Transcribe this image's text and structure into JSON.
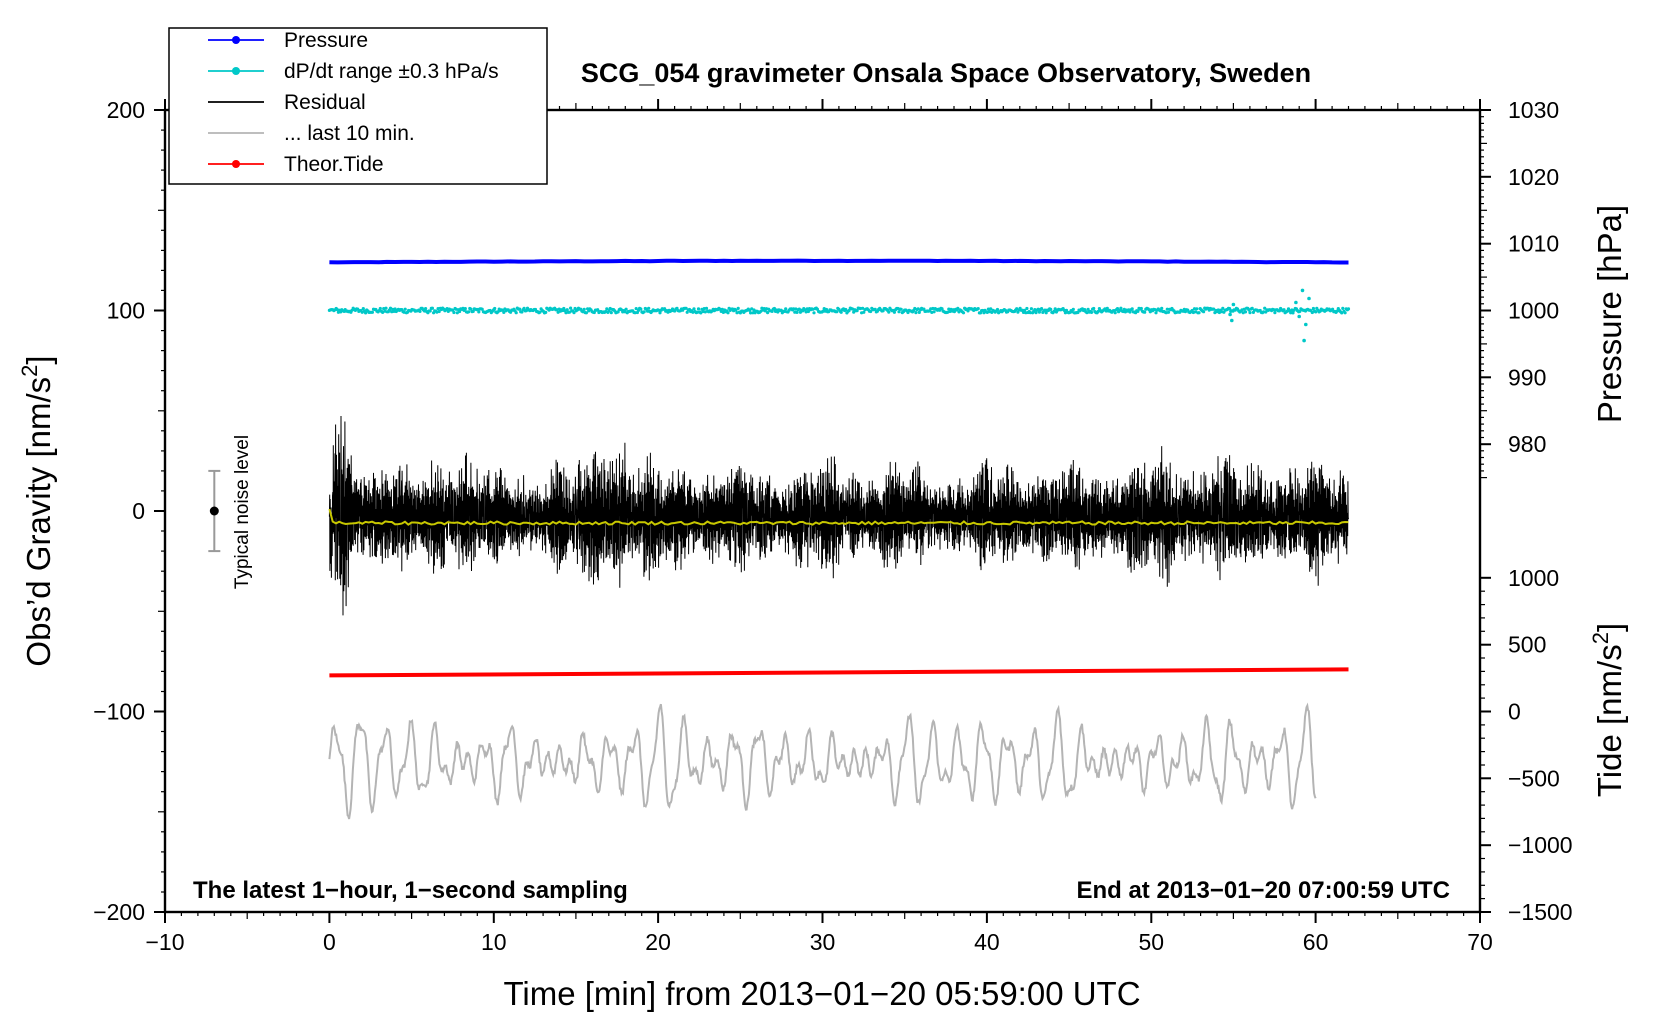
{
  "chart_data": {
    "type": "line",
    "title": "SCG_054 gravimeter Onsala Space Observatory, Sweden",
    "xlabel": "Time [min] from 2013−01−20 05:59:00 UTC",
    "ylabel": "Obs’d Gravity [nm/s²]",
    "ylabel_main": "Obs’d Gravity [nm/s",
    "ylabel_sup": "2",
    "ylabel_close": "]",
    "y2label": "Pressure [hPa]",
    "y3label_main": "Tide [nm/s",
    "y3label_sup": "2",
    "y3label_close": "]",
    "xlim": [
      -10,
      70
    ],
    "ylim": [
      -200,
      200
    ],
    "xticks": [
      -10,
      0,
      10,
      20,
      30,
      40,
      50,
      60,
      70
    ],
    "xtick_labels": [
      "−10",
      "0",
      "10",
      "20",
      "30",
      "40",
      "50",
      "60",
      "70"
    ],
    "yticks": [
      200,
      100,
      0,
      -100,
      -200
    ],
    "ytick_labels": [
      "200",
      "100",
      "0",
      "−100",
      "−200"
    ],
    "pressure_axis": {
      "ticks": [
        1030,
        1020,
        1010,
        1000,
        990,
        980
      ],
      "labels": [
        "1030",
        "1020",
        "1010",
        "1000",
        "990",
        "980"
      ],
      "gravity_per_hpa": 3.333,
      "gravity_at_1000": 100
    },
    "tide_axis": {
      "ticks": [
        1000,
        500,
        0,
        -500,
        -1000,
        -1500
      ],
      "labels": [
        "1000",
        "500",
        "0",
        "−500",
        "−1000",
        "−1500"
      ],
      "gravity_per_unit": 0.06667,
      "gravity_at_0": -100
    },
    "legend": [
      {
        "label": "Pressure",
        "color": "#0000ff",
        "marker": true
      },
      {
        "label": "dP/dt range ±0.3 hPa/s",
        "color": "#00c8c8",
        "marker": true
      },
      {
        "label": "Residual",
        "color": "#000000",
        "marker": false
      },
      {
        "label": "... last 10 min.",
        "color": "#b4b4b4",
        "marker": false
      },
      {
        "label": "Theor.Tide",
        "color": "#ff0000",
        "marker": true
      }
    ],
    "series": [
      {
        "name": "Pressure",
        "color": "#0000ff",
        "x_range": [
          0,
          62
        ],
        "y_start": 124.0,
        "y_mid": 124.8,
        "y_end": 124.0
      },
      {
        "name": "dP/dt range ±0.3 hPa/s",
        "color": "#00c8c8",
        "x_range": [
          0,
          62
        ],
        "y_center": 100,
        "noise": 1.2,
        "outliers": [
          [
            54.8,
            98
          ],
          [
            55.0,
            103
          ],
          [
            54.9,
            95
          ],
          [
            58.8,
            104
          ],
          [
            59.2,
            110
          ],
          [
            59.4,
            93
          ],
          [
            59.3,
            85
          ],
          [
            59.6,
            106
          ],
          [
            59.0,
            97
          ]
        ]
      },
      {
        "name": "Residual",
        "color": "#000000",
        "x_range": [
          0,
          62
        ],
        "y_center": -3,
        "amplitude_envelope": [
          [
            0,
            40
          ],
          [
            0.4,
            60
          ],
          [
            1.5,
            30
          ],
          [
            3,
            35
          ],
          [
            5,
            25
          ],
          [
            8,
            40
          ],
          [
            10,
            25
          ],
          [
            15,
            30
          ],
          [
            18,
            55
          ],
          [
            18.6,
            30
          ],
          [
            22,
            30
          ],
          [
            28,
            28
          ],
          [
            33,
            30
          ],
          [
            38,
            25
          ],
          [
            41,
            30
          ],
          [
            46,
            28
          ],
          [
            50,
            35
          ],
          [
            55,
            32
          ],
          [
            58,
            30
          ],
          [
            60,
            32
          ],
          [
            62,
            28
          ]
        ]
      },
      {
        "name": "Residual smoothed",
        "color": "#c8c800",
        "x_range": [
          0,
          62
        ],
        "y_values": [
          -5,
          -7
        ]
      },
      {
        "name": "... last 10 min.",
        "color": "#b4b4b4",
        "x_range": [
          0,
          60
        ],
        "y_center": -125,
        "y_min": -163,
        "y_max": -83
      },
      {
        "name": "Theor.Tide",
        "color": "#ff0000",
        "x": [
          0,
          62
        ],
        "y": [
          -82,
          -79
        ]
      }
    ],
    "noise_bar": {
      "label": "Typical noise level",
      "x": -7,
      "y": 0,
      "halfwidth": 20
    },
    "footer_left": "The latest 1−hour, 1−second sampling",
    "footer_right": "End at 2013−01−20 07:00:59 UTC"
  }
}
